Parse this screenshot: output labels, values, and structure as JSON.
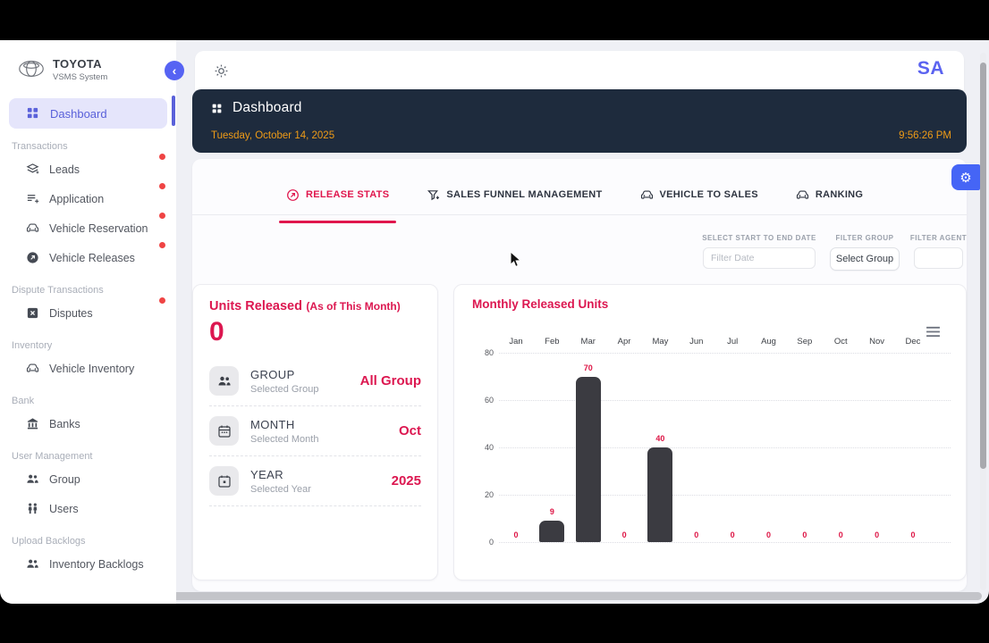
{
  "sidebar": {
    "brand": {
      "name": "TOYOTA",
      "subtitle": "VSMS System"
    },
    "dashboard": {
      "label": "Dashboard"
    },
    "sections": [
      {
        "label": "Transactions",
        "items": [
          {
            "label": "Leads",
            "icon": "layers-add-icon",
            "dot": true
          },
          {
            "label": "Application",
            "icon": "playlist-add-icon",
            "dot": true
          },
          {
            "label": "Vehicle Reservation",
            "icon": "car-icon",
            "dot": true
          },
          {
            "label": "Vehicle Releases",
            "icon": "arrow-up-right-circle-icon",
            "dot": true
          }
        ]
      },
      {
        "label": "Dispute Transactions",
        "items": [
          {
            "label": "Disputes",
            "icon": "x-square-icon",
            "dot": true
          }
        ]
      },
      {
        "label": "Inventory",
        "items": [
          {
            "label": "Vehicle Inventory",
            "icon": "car-icon",
            "dot": false
          }
        ]
      },
      {
        "label": "Bank",
        "items": [
          {
            "label": "Banks",
            "icon": "bank-icon",
            "dot": false
          }
        ]
      },
      {
        "label": "User Management",
        "items": [
          {
            "label": "Group",
            "icon": "group-icon",
            "dot": false
          },
          {
            "label": "Users",
            "icon": "users-icon",
            "dot": false
          }
        ]
      },
      {
        "label": "Upload Backlogs",
        "items": [
          {
            "label": "Inventory Backlogs",
            "icon": "group-icon",
            "dot": false
          }
        ]
      }
    ]
  },
  "header": {
    "avatar": "SA",
    "banner": {
      "title": "Dashboard",
      "date": "Tuesday, October 14, 2025",
      "time": "9:56:26 PM"
    }
  },
  "tabs": [
    {
      "label": "RELEASE STATS",
      "active": true
    },
    {
      "label": "SALES FUNNEL MANAGEMENT",
      "active": false
    },
    {
      "label": "VEHICLE TO SALES",
      "active": false
    },
    {
      "label": "RANKING",
      "active": false
    }
  ],
  "filters": {
    "date": {
      "label": "SELECT START TO END DATE",
      "placeholder": "Filter Date"
    },
    "group": {
      "label": "FILTER GROUP",
      "value": "Select Group"
    },
    "agent": {
      "label": "FILTER AGENT",
      "value": ""
    }
  },
  "units_card": {
    "title": "Units Released",
    "title_suffix": "(As of This Month)",
    "value": "0",
    "rows": [
      {
        "label": "GROUP",
        "sublabel": "Selected Group",
        "value": "All Group",
        "icon": "group-icon"
      },
      {
        "label": "MONTH",
        "sublabel": "Selected Month",
        "value": "Oct",
        "icon": "calendar-icon"
      },
      {
        "label": "YEAR",
        "sublabel": "Selected Year",
        "value": "2025",
        "icon": "calendar-year-icon"
      }
    ]
  },
  "chart_data": {
    "type": "bar",
    "title": "Monthly Released Units",
    "categories": [
      "Jan",
      "Feb",
      "Mar",
      "Apr",
      "May",
      "Jun",
      "Jul",
      "Aug",
      "Sep",
      "Oct",
      "Nov",
      "Dec"
    ],
    "values": [
      0,
      9,
      70,
      0,
      40,
      0,
      0,
      0,
      0,
      0,
      0,
      0
    ],
    "xlabel": "",
    "ylabel": "",
    "ylim": [
      0,
      80
    ],
    "yticks": [
      0,
      20,
      40,
      60,
      80
    ],
    "x_axis_position": "top",
    "grid": true,
    "data_labels": true,
    "legend": "none",
    "bar_color": "#3b3b41",
    "label_color": "#dd1545"
  },
  "colors": {
    "accent_pink": "#e0164d",
    "accent_indigo": "#5b63f0",
    "banner_navy": "#1e2b3d",
    "banner_orange": "#ee9b17",
    "fab_blue": "#4565f6",
    "bar_dark": "#3b3b41",
    "notification_red": "#ef4444"
  }
}
